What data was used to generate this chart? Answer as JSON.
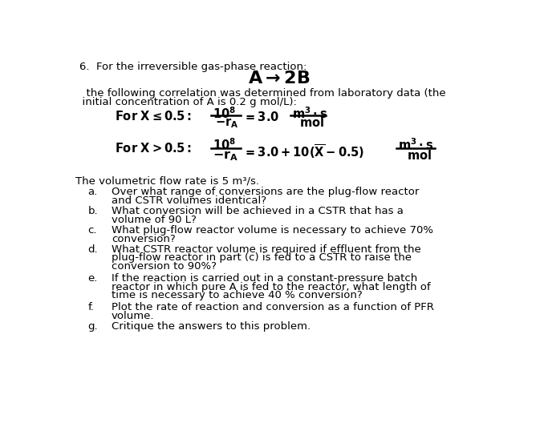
{
  "background_color": "#ffffff",
  "fig_width": 6.78,
  "fig_height": 5.43,
  "dpi": 100,
  "body_font": "DejaVu Sans",
  "bold_font": "DejaVu Sans",
  "body_fs": 9.5,
  "eq_fs": 10.5,
  "title_fs": 15,
  "line1": "6.  For the irreversible gas-phase reaction:",
  "reaction": "A → 2B",
  "line3": "  the following correlation was determined from laboratory data (the",
  "line4": "  initial concentration of A is 0.2 g mol/L):",
  "vol_line": "The volumetric flow rate is 5 m³/s.",
  "bullet_lines": [
    [
      "a.",
      "Over what range of conversions are the plug-flow reactor",
      "and CSTR volumes identical?"
    ],
    [
      "b.",
      "What conversion will be achieved in a CSTR that has a",
      "volume of 90 L?"
    ],
    [
      "c.",
      "What plug-flow reactor volume is necessary to achieve 70%",
      "conversion?"
    ],
    [
      "d.",
      "What CSTR reactor volume is required if effluent from the",
      "plug-flow reactor in part (c) is fed to a CSTR to raise the",
      "conversion to 90%?"
    ],
    [
      "e.",
      "If the reaction is carried out in a constant-pressure batch",
      "reactor in which pure A is fed to the reactor, what length of",
      "time is necessary to achieve 40 % conversion?"
    ],
    [
      "f.",
      "Plot the rate of reaction and conversion as a function of PFR",
      "volume."
    ],
    [
      "g.",
      "Critique the answers to this problem."
    ]
  ]
}
